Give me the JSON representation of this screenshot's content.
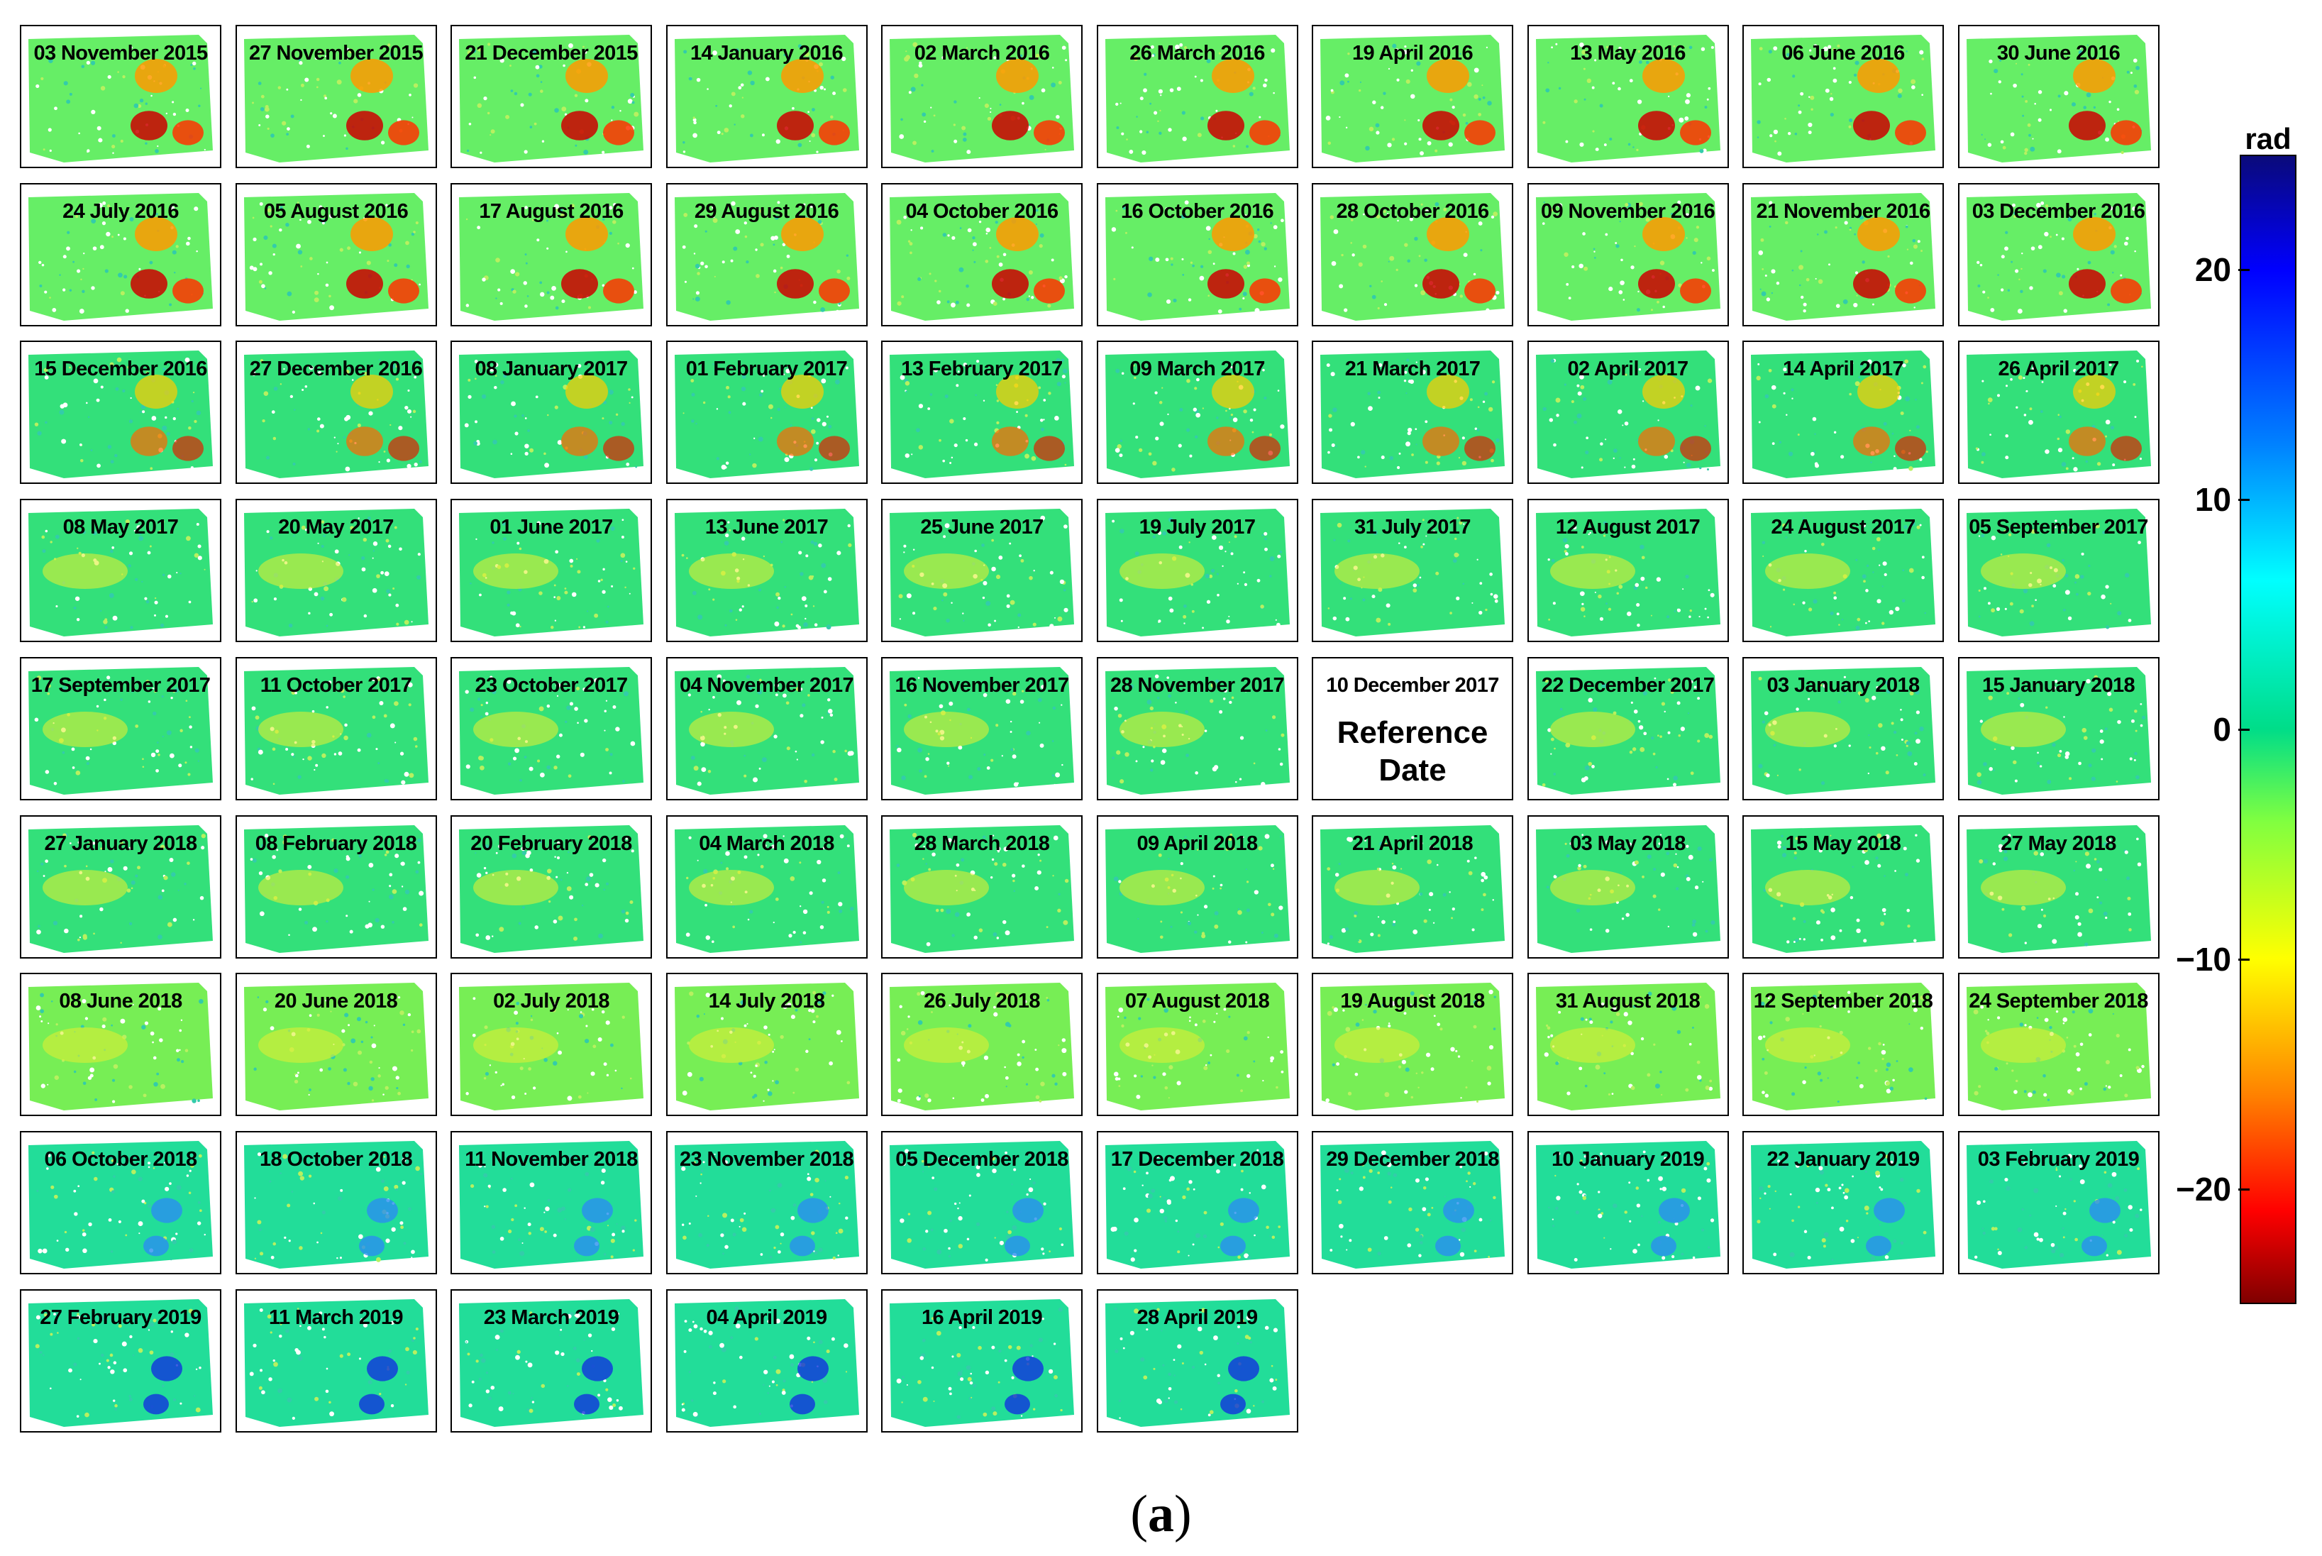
{
  "chart_data": {
    "type": "heatmap",
    "panels": [
      "03 November 2015",
      "27 November 2015",
      "21 December 2015",
      "14 January 2016",
      "02 March 2016",
      "26 March 2016",
      "19 April 2016",
      "13 May 2016",
      "06 June 2016",
      "30 June 2016",
      "24 July 2016",
      "05 August 2016",
      "17 August 2016",
      "29 August 2016",
      "04 October 2016",
      "16 October 2016",
      "28 October 2016",
      "09 November 2016",
      "21 November 2016",
      "03 December 2016",
      "15 December 2016",
      "27 December 2016",
      "08 January 2017",
      "01 February 2017",
      "13 February 2017",
      "09 March 2017",
      "21 March 2017",
      "02 April 2017",
      "14 April 2017",
      "26 April 2017",
      "08 May 2017",
      "20 May 2017",
      "01 June 2017",
      "13 June 2017",
      "25 June 2017",
      "19 July 2017",
      "31 July 2017",
      "12 August 2017",
      "24 August 2017",
      "05 September 2017",
      "17 September 2017",
      "11 October 2017",
      "23 October 2017",
      "04 November 2017",
      "16 November 2017",
      "28 November 2017",
      "10 December 2017",
      "22 December 2017",
      "03 January 2018",
      "15 January 2018",
      "27 January 2018",
      "08 February 2018",
      "20 February 2018",
      "04 March 2018",
      "28 March 2018",
      "09 April 2018",
      "21 April 2018",
      "03 May 2018",
      "15 May 2018",
      "27 May 2018",
      "08 June 2018",
      "20 June 2018",
      "02 July 2018",
      "14 July 2018",
      "26 July 2018",
      "07 August 2018",
      "19 August 2018",
      "31 August 2018",
      "12 September 2018",
      "24 September 2018",
      "06 October 2018",
      "18 October 2018",
      "11 November 2018",
      "23 November 2018",
      "05 December 2018",
      "17 December 2018",
      "29 December 2018",
      "10 January 2019",
      "22 January 2019",
      "03 February 2019",
      "27 February 2019",
      "11 March 2019",
      "23 March 2019",
      "04 April 2019",
      "16 April 2019",
      "28 April 2019"
    ],
    "reference_index": 46,
    "reference_note": "Reference Date",
    "colorbar": {
      "unit": "rad",
      "range": [
        -25,
        25
      ],
      "ticks": [
        20,
        10,
        0,
        -10,
        -20
      ],
      "tick_labels": [
        "20",
        "10",
        "0",
        "−10",
        "−20"
      ],
      "colors_top_to_bottom": [
        "#0a0a7a",
        "#0000ff",
        "#0080ff",
        "#00ffff",
        "#00dd88",
        "#80ff40",
        "#ffff00",
        "#ff8000",
        "#ff0000",
        "#800000"
      ]
    },
    "caption": "(a)"
  }
}
